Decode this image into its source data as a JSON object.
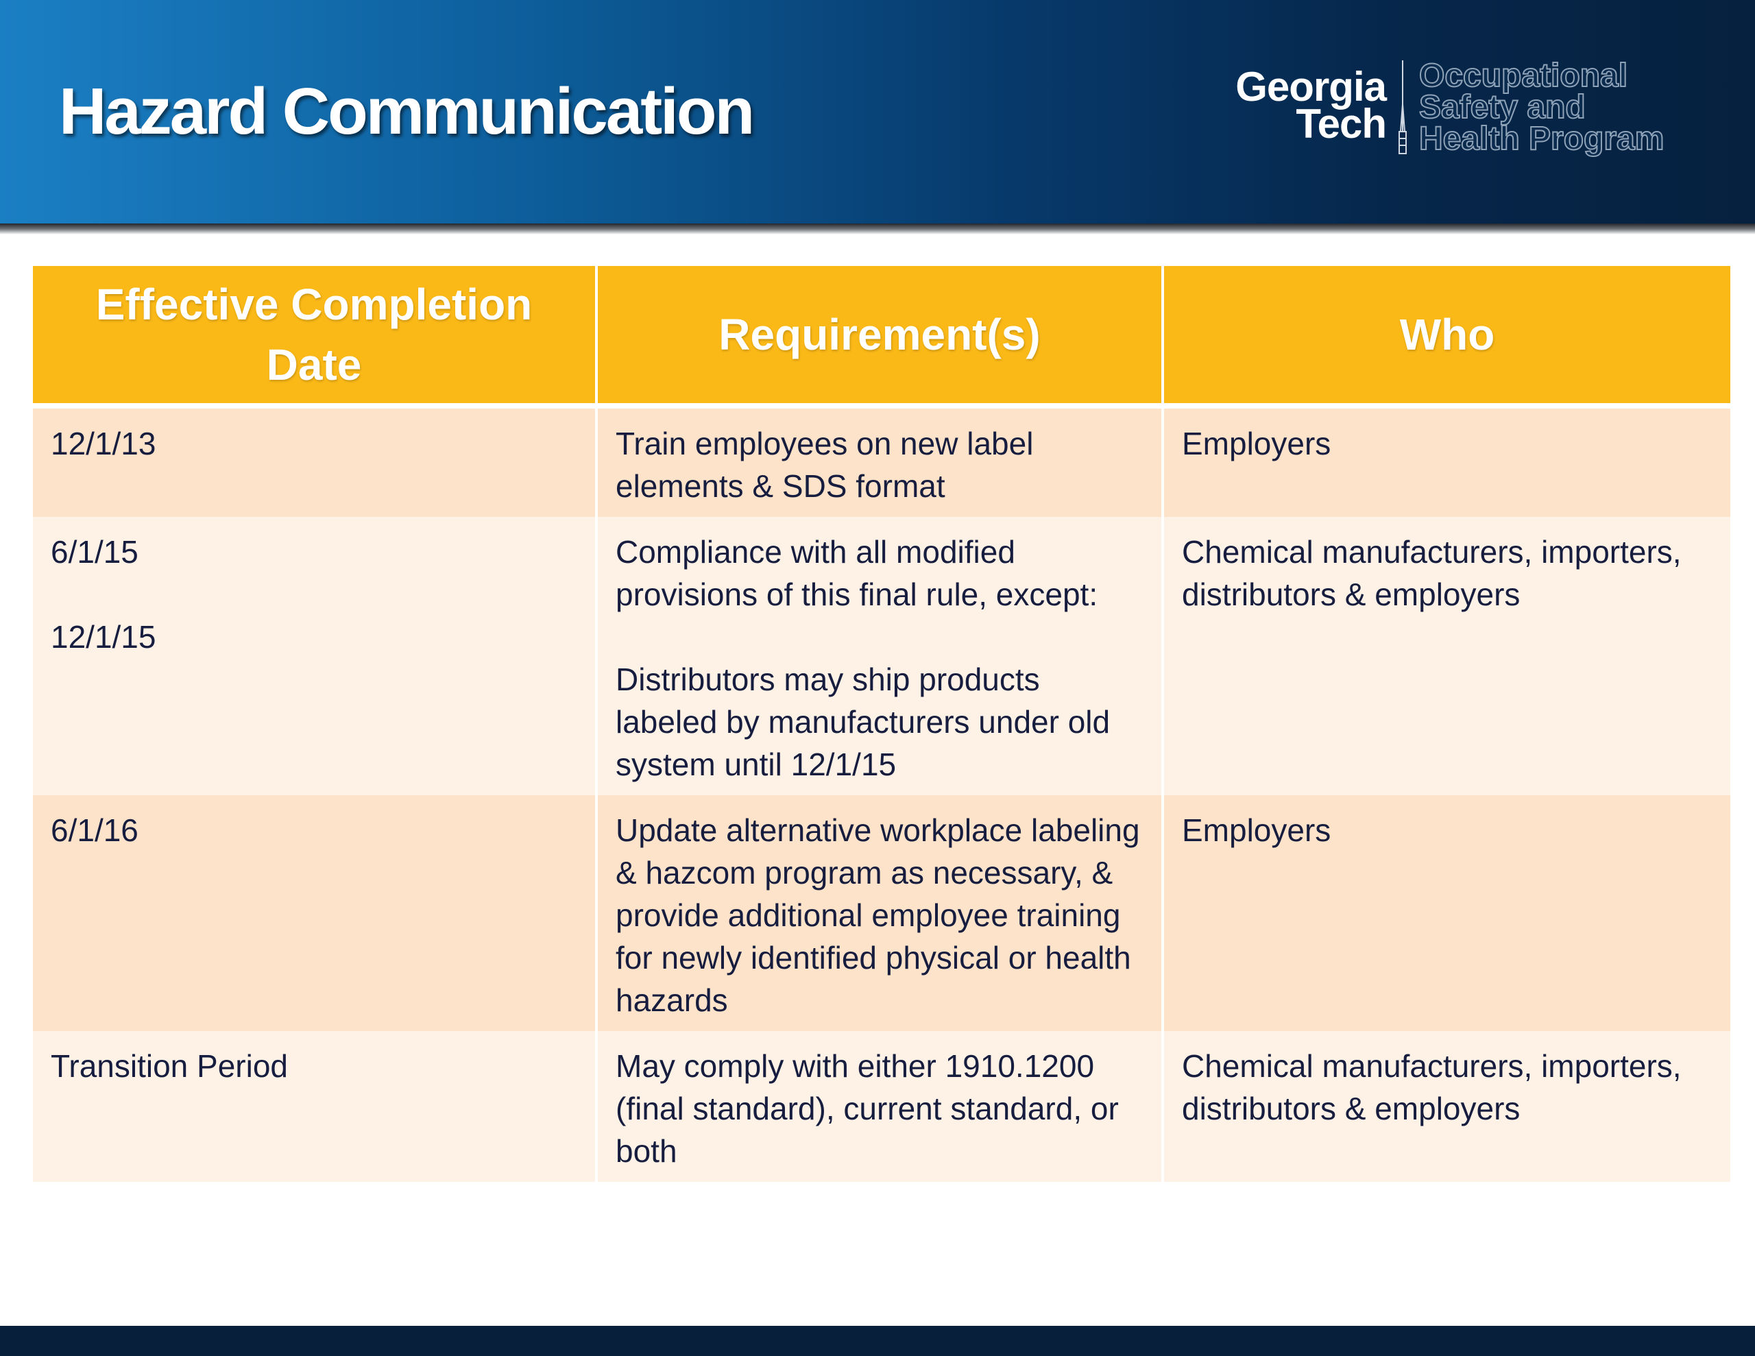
{
  "header": {
    "title": "Hazard Communication",
    "logo": {
      "line1": "Georgia",
      "line2": "Tech",
      "program": [
        "Occupational",
        "Safety and",
        "Health Program"
      ]
    }
  },
  "table": {
    "columns": [
      "Effective Completion Date",
      "Requirement(s)",
      "Who"
    ],
    "rows": [
      {
        "date": "12/1/13",
        "requirement": "Train employees on new label elements & SDS format",
        "who": "Employers"
      },
      {
        "date": "6/1/15",
        "date2": "12/1/15",
        "requirement": "Compliance with all modified provisions of this final rule, except:",
        "requirement2": "Distributors may ship products labeled by manufacturers under old system until 12/1/15",
        "who": "Chemical manufacturers, importers, distributors & employers"
      },
      {
        "date": "6/1/16",
        "requirement": "Update alternative workplace labeling & hazcom program as necessary, & provide additional employee training for newly identified physical or health hazards",
        "who": "Employers"
      },
      {
        "date": "Transition Period",
        "requirement": "May comply with either 1910.1200 (final standard), current standard, or both",
        "who": "Chemical manufacturers, importers, distributors & employers"
      }
    ]
  },
  "colors": {
    "header_start": "#1b7fc4",
    "header_end": "#06213f",
    "table_header": "#fbb917",
    "row_dark": "#fde3c9",
    "row_light": "#fef2e6",
    "body_text": "#161d3f",
    "footer": "#071f3a"
  }
}
